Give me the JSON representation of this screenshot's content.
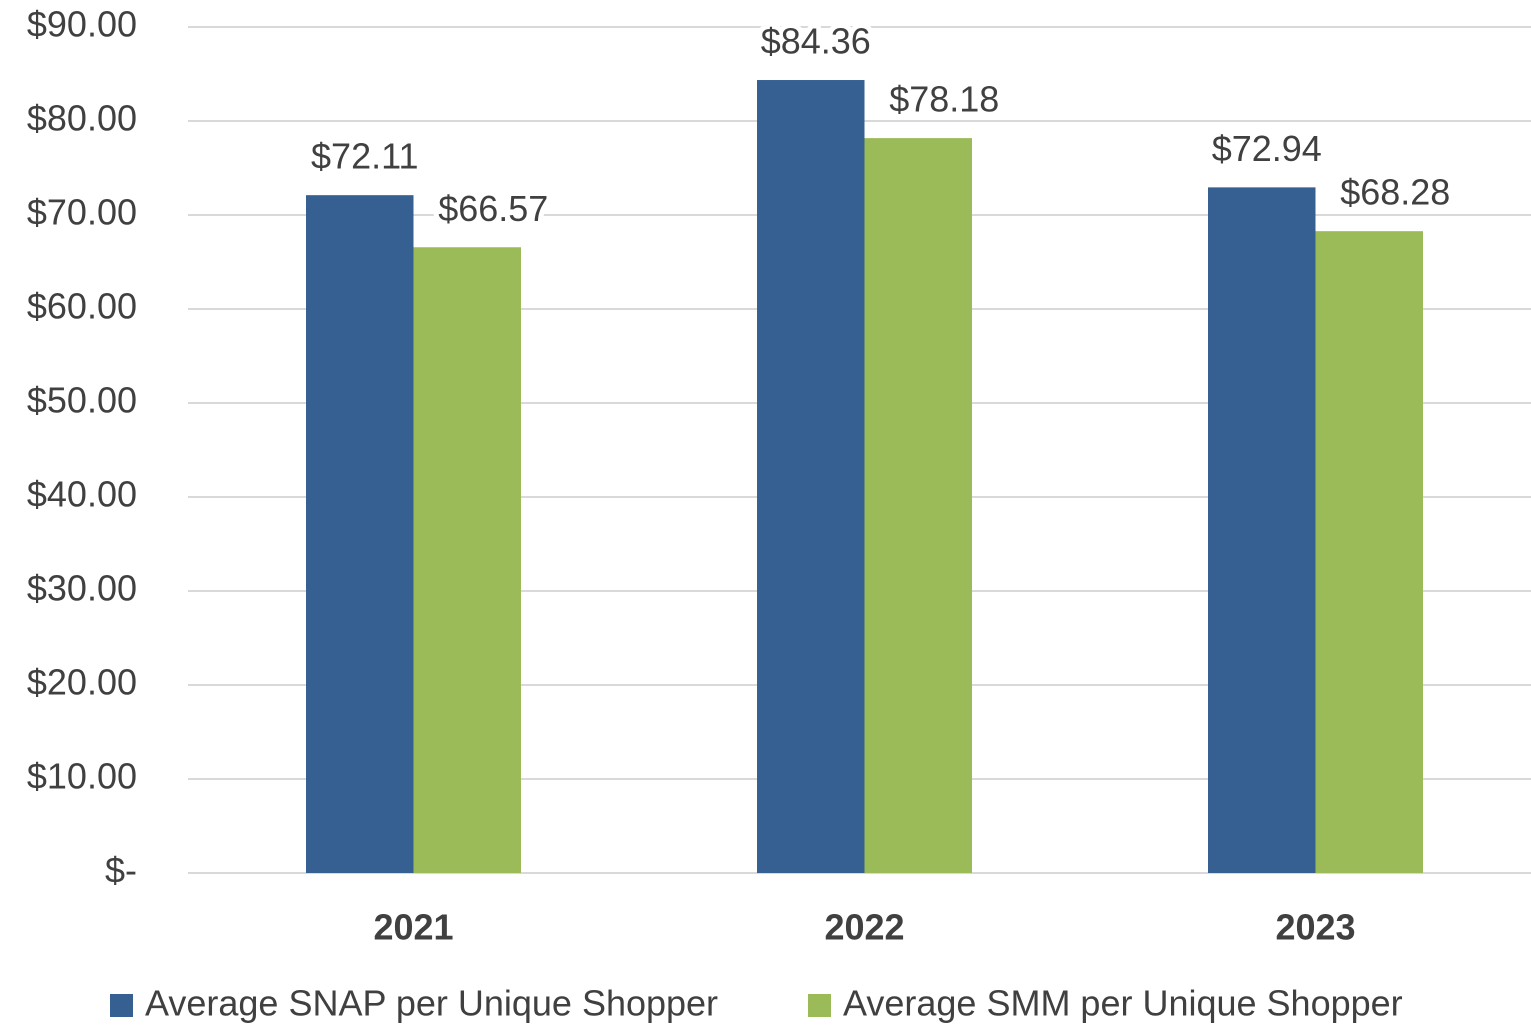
{
  "chart_data": {
    "type": "bar",
    "categories": [
      "2021",
      "2022",
      "2023"
    ],
    "series": [
      {
        "name": "Average SNAP per Unique Shopper",
        "color": "#376092",
        "values": [
          72.11,
          84.36,
          72.94
        ],
        "value_labels": [
          "$72.11",
          "$84.36",
          "$72.94"
        ]
      },
      {
        "name": "Average SMM per Unique Shopper",
        "color": "#9bbb59",
        "values": [
          66.57,
          78.18,
          68.28
        ],
        "value_labels": [
          "$66.57",
          "$78.18",
          "$68.28"
        ]
      }
    ],
    "ylim": [
      0,
      90
    ],
    "yticks": [
      {
        "value": 0,
        "label": "$-"
      },
      {
        "value": 10,
        "label": "$10.00"
      },
      {
        "value": 20,
        "label": "$20.00"
      },
      {
        "value": 30,
        "label": "$30.00"
      },
      {
        "value": 40,
        "label": "$40.00"
      },
      {
        "value": 50,
        "label": "$50.00"
      },
      {
        "value": 60,
        "label": "$60.00"
      },
      {
        "value": 70,
        "label": "$70.00"
      },
      {
        "value": 80,
        "label": "$80.00"
      },
      {
        "value": 90,
        "label": "$90.00"
      }
    ],
    "grid": true,
    "legend": "bottom"
  }
}
